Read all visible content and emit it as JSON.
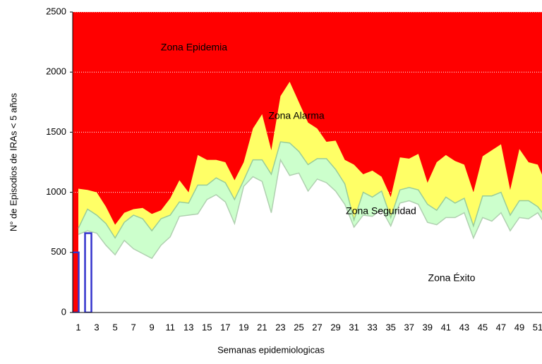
{
  "chart_data": {
    "type": "endemic-channel",
    "xlabel": "Semanas epidemiologicas",
    "ylabel": "N° de Episodios  de IRAs < 5 años",
    "categories": [
      1,
      null,
      3,
      null,
      5,
      null,
      7,
      null,
      9,
      null,
      11,
      null,
      13,
      null,
      15,
      null,
      17,
      null,
      19,
      null,
      21,
      null,
      23,
      null,
      25,
      null,
      27,
      null,
      29,
      null,
      31,
      null,
      33,
      null,
      35,
      null,
      37,
      null,
      39,
      null,
      41,
      null,
      43,
      null,
      45,
      null,
      47,
      null,
      49,
      null,
      51,
      null
    ],
    "ylim": [
      0,
      2500
    ],
    "yticks": [
      0,
      500,
      1000,
      1500,
      2000,
      2500
    ],
    "grid": true,
    "epidemic_color": "#ff0000",
    "annotations": [
      "Zona Epidemia",
      "Zona Alarma",
      "Zona Seguridad",
      "Zona Éxito"
    ],
    "series": [
      {
        "name": "Zona Alarma",
        "color": "#ffff66",
        "values": [
          1030,
          1020,
          1000,
          880,
          730,
          830,
          860,
          870,
          820,
          850,
          950,
          1100,
          1000,
          1310,
          1270,
          1270,
          1250,
          1100,
          1250,
          1530,
          1650,
          1350,
          1800,
          1920,
          1750,
          1580,
          1530,
          1420,
          1430,
          1270,
          1230,
          1150,
          1180,
          1130,
          960,
          1290,
          1280,
          1320,
          1080,
          1250,
          1310,
          1260,
          1230,
          1000,
          1300,
          1350,
          1400,
          1020,
          1360,
          1250,
          1230,
          1050
        ]
      },
      {
        "name": "Zona Seguridad",
        "color": "#ccffcc",
        "values": [
          700,
          860,
          810,
          740,
          620,
          750,
          810,
          780,
          680,
          780,
          810,
          920,
          910,
          1060,
          1060,
          1120,
          1080,
          940,
          1100,
          1270,
          1270,
          1150,
          1420,
          1410,
          1340,
          1230,
          1280,
          1280,
          1190,
          1070,
          770,
          1000,
          960,
          1010,
          790,
          1020,
          1040,
          1020,
          900,
          850,
          960,
          910,
          950,
          720,
          970,
          970,
          1000,
          810,
          930,
          930,
          880,
          780
        ]
      },
      {
        "name": "Zona Éxito",
        "color": "#ffffff",
        "values": [
          650,
          680,
          660,
          560,
          480,
          600,
          530,
          490,
          450,
          560,
          630,
          800,
          810,
          820,
          940,
          980,
          920,
          740,
          1050,
          1130,
          1090,
          830,
          1270,
          1140,
          1160,
          1010,
          1110,
          1080,
          1010,
          900,
          710,
          810,
          800,
          860,
          720,
          910,
          930,
          900,
          750,
          730,
          790,
          790,
          830,
          620,
          790,
          760,
          830,
          680,
          790,
          780,
          830,
          710
        ]
      },
      {
        "type": "bar",
        "color": "#3333cc",
        "values": [
          500,
          660,
          null,
          null,
          null,
          null,
          null,
          null,
          null,
          null,
          null,
          null,
          null,
          null,
          null,
          null,
          null,
          null,
          null,
          null,
          null,
          null,
          null,
          null,
          null,
          null,
          null,
          null,
          null,
          null,
          null,
          null,
          null,
          null,
          null,
          null,
          null,
          null,
          null,
          null,
          null,
          null,
          null,
          null,
          null,
          null,
          null,
          null,
          null,
          null,
          null,
          null
        ]
      }
    ]
  }
}
